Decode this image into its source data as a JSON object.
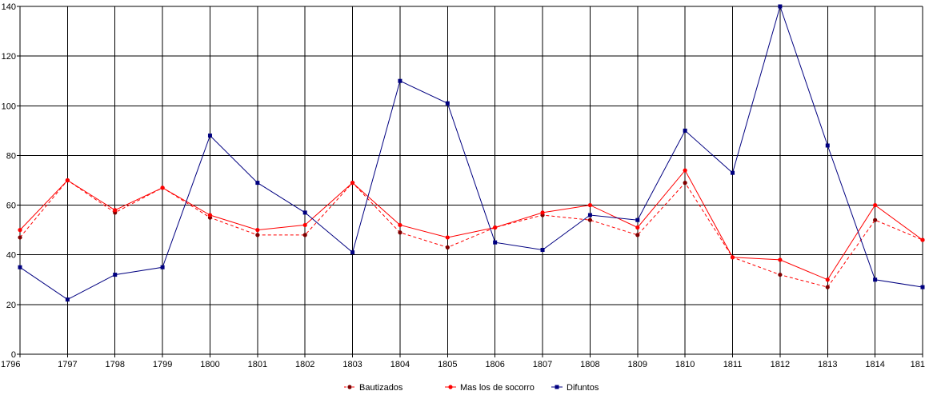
{
  "chart_data": {
    "type": "line",
    "title": "",
    "xlabel": "",
    "ylabel": "",
    "categories": [
      "1796",
      "1797",
      "1798",
      "1799",
      "1800",
      "1801",
      "1802",
      "1803",
      "1804",
      "1805",
      "1806",
      "1807",
      "1808",
      "1809",
      "1810",
      "1811",
      "1812",
      "1813",
      "1814",
      "181"
    ],
    "ylim": [
      0,
      140
    ],
    "yticks": [
      0,
      20,
      40,
      60,
      80,
      100,
      120,
      140
    ],
    "grid": true,
    "legend_position": "bottom",
    "series": [
      {
        "name": "Bautizados",
        "color": "#800000",
        "line_color": "#ff0000",
        "dash": true,
        "marker": "circle",
        "values": [
          47,
          70,
          57,
          67,
          55,
          48,
          48,
          69,
          49,
          43,
          51,
          56,
          54,
          48,
          69,
          39,
          32,
          27,
          54,
          46
        ]
      },
      {
        "name": "Mas los de socorro",
        "color": "#ff0000",
        "line_color": "#ff0000",
        "dash": false,
        "marker": "circle",
        "values": [
          50,
          70,
          58,
          67,
          56,
          50,
          52,
          69,
          52,
          47,
          51,
          57,
          60,
          51,
          74,
          39,
          38,
          30,
          60,
          46
        ]
      },
      {
        "name": "Difuntos",
        "color": "#000080",
        "line_color": "#000080",
        "dash": false,
        "marker": "square",
        "values": [
          35,
          22,
          32,
          35,
          88,
          69,
          57,
          41,
          110,
          101,
          45,
          42,
          56,
          54,
          90,
          73,
          140,
          84,
          30,
          27
        ]
      }
    ]
  }
}
